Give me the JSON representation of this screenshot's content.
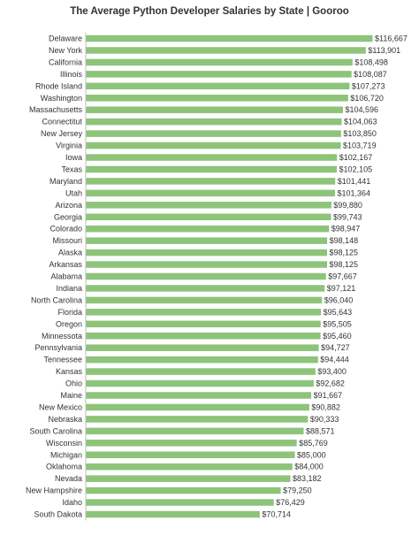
{
  "chart_data": {
    "type": "bar",
    "orientation": "horizontal",
    "title": "The Average Python Developer Salaries by State | Gooroo",
    "xlabel": "",
    "ylabel": "",
    "xlim": [
      0,
      116667
    ],
    "grid": false,
    "legend": "none",
    "bar_color": "#8dc47a",
    "categories": [
      "Delaware",
      "New York",
      "California",
      "Illinois",
      "Rhode Island",
      "Washington",
      "Massachusetts",
      "Connectitut",
      "New Jersey",
      "Virginia",
      "Iowa",
      "Texas",
      "Maryland",
      "Utah",
      "Arizona",
      "Georgia",
      "Colorado",
      "Missouri",
      "Alaska",
      "Arkansas",
      "Alabama",
      "Indiana",
      "North Carolina",
      "Florida",
      "Oregon",
      "Minnessota",
      "Pennsylvania",
      "Tennessee",
      "Kansas",
      "Ohio",
      "Maine",
      "New Mexico",
      "Nebraska",
      "South Carolina",
      "Wisconsin",
      "Michigan",
      "Oklahoma",
      "Nevada",
      "New Hampshire",
      "Idaho",
      "South Dakota"
    ],
    "values": [
      116667,
      113901,
      108498,
      108087,
      107273,
      106720,
      104596,
      104063,
      103850,
      103719,
      102167,
      102105,
      101441,
      101364,
      99880,
      99743,
      98947,
      98148,
      98125,
      98125,
      97667,
      97121,
      96040,
      95643,
      95505,
      95460,
      94727,
      94444,
      93400,
      92682,
      91667,
      90882,
      90333,
      88571,
      85769,
      85000,
      84000,
      83182,
      79250,
      76429,
      70714
    ],
    "value_labels": [
      "$116,667",
      "$113,901",
      "$108,498",
      "$108,087",
      "$107,273",
      "$106,720",
      "$104,596",
      "$104,063",
      "$103,850",
      "$103,719",
      "$102,167",
      "$102,105",
      "$101,441",
      "$101,364",
      "$99,880",
      "$99,743",
      "$98,947",
      "$98,148",
      "$98,125",
      "$98,125",
      "$97,667",
      "$97,121",
      "$96,040",
      "$95,643",
      "$95,505",
      "$95,460",
      "$94,727",
      "$94,444",
      "$93,400",
      "$92,682",
      "$91,667",
      "$90,882",
      "$90,333",
      "$88,571",
      "$85,769",
      "$85,000",
      "$84,000",
      "$83,182",
      "$79,250",
      "$76,429",
      "$70,714"
    ]
  }
}
